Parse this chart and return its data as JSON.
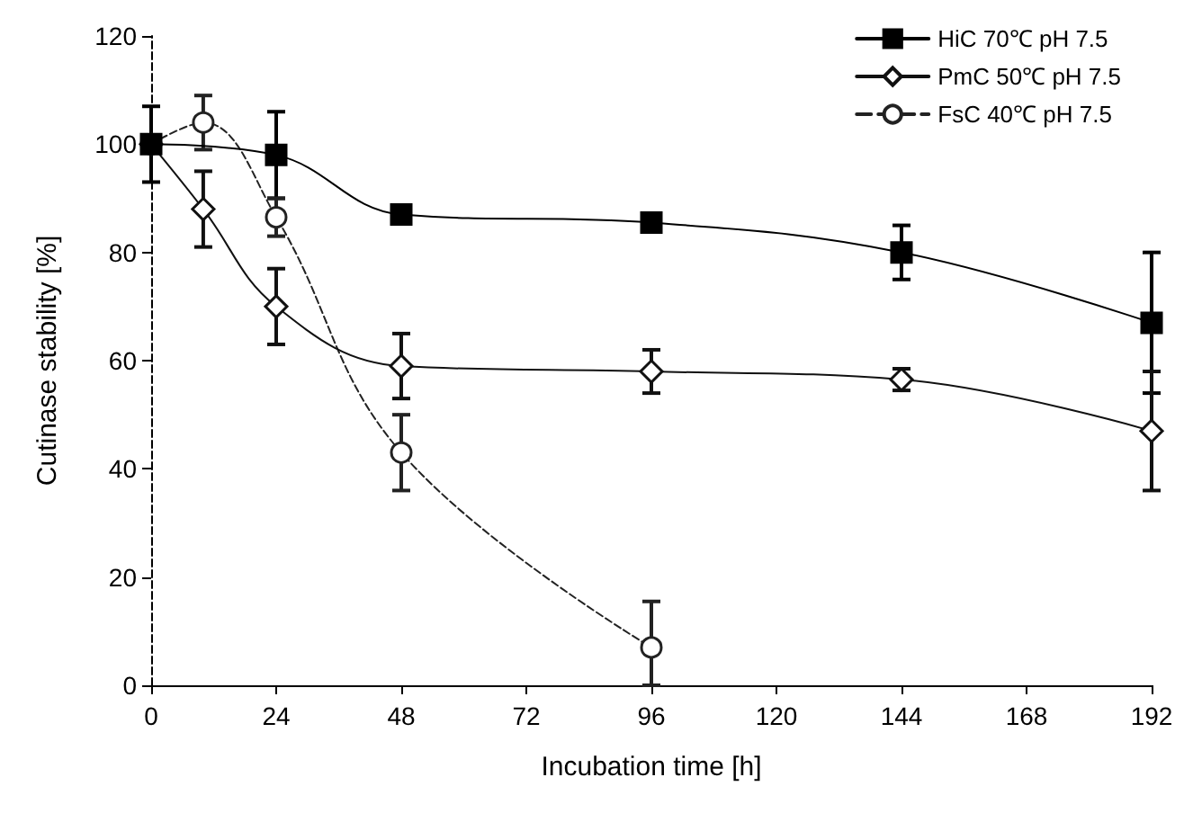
{
  "chart_data": {
    "type": "line",
    "xlabel": "Incubation time [h]",
    "ylabel": "Cutinase stability [%]",
    "xlim": [
      0,
      192
    ],
    "xticks": [
      0,
      24,
      48,
      72,
      96,
      120,
      144,
      168,
      192
    ],
    "ylim": [
      0,
      120
    ],
    "yticks": [
      0,
      20,
      40,
      60,
      80,
      100,
      120
    ],
    "grid": false,
    "legend": "top right",
    "series": [
      {
        "name": "HiC 70℃ pH 7.5",
        "color": "#000000",
        "marker": "square",
        "line_style": "solid",
        "x": [
          0,
          24,
          48,
          96,
          144,
          192
        ],
        "values": [
          100,
          98,
          87,
          85.5,
          80,
          67
        ],
        "errors": [
          7,
          8,
          null,
          null,
          5,
          13
        ]
      },
      {
        "name": "PmC 50℃ pH 7.5",
        "color": "#111111",
        "marker": "diamond",
        "line_style": "solid",
        "x": [
          0,
          10,
          24,
          48,
          96,
          144,
          192
        ],
        "values": [
          100,
          88,
          70,
          59,
          58,
          56.5,
          47
        ],
        "errors": [
          null,
          7,
          7,
          6,
          4,
          2,
          11
        ]
      },
      {
        "name": "FsC 40℃ pH 7.5",
        "color": "#222222",
        "marker": "circle",
        "line_style": "dashed",
        "x": [
          0,
          10,
          24,
          48,
          96
        ],
        "values": [
          100,
          104,
          86.5,
          43,
          7
        ],
        "errors": [
          null,
          5,
          [
            83,
            90
          ],
          7,
          [
            0,
            15.5
          ]
        ]
      }
    ]
  }
}
